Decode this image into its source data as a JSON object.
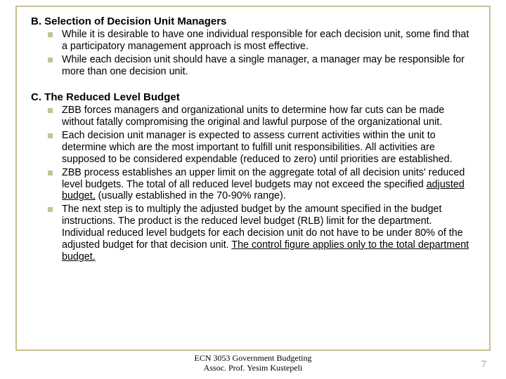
{
  "colors": {
    "frame_border": "#c8c090",
    "bullet_square": "#c8c090",
    "page_number": "#b89040",
    "text": "#000000",
    "background": "#ffffff"
  },
  "typography": {
    "body_font": "Arial",
    "footer_font": "Times New Roman",
    "heading_size_pt": 12,
    "body_size_pt": 11,
    "footer_size_pt": 9
  },
  "sectionB": {
    "heading": "B. Selection of Decision Unit Managers",
    "bullets": [
      "While it is desirable to have one individual responsible for each decision unit, some find that a participatory management approach is most effective.",
      "While each decision unit should have a single manager, a manager may be responsible for more than one decision unit."
    ]
  },
  "sectionC": {
    "heading": "C. The Reduced Level Budget",
    "bullets": [
      {
        "pre": "ZBB forces managers and organizational units to determine how far cuts can be made without fatally compromising the original and lawful purpose of the organizational unit."
      },
      {
        "pre": "Each decision unit manager is expected to assess current activities within the unit to determine which are the most important to fulfill unit responsibilities. All activities are supposed to be considered expendable (reduced to zero) until priorities are established."
      },
      {
        "pre": "ZBB process establishes an upper limit on the aggregate total of all decision units' reduced level budgets. The  total of all reduced level budgets may not exceed the specified ",
        "u1": "adjusted budget,",
        "mid": " (usually established in the 70-90% range)."
      },
      {
        "pre": "The next step is to multiply the adjusted budget by the amount specified in the budget instructions. The product is the reduced level budget (RLB) limit for the department. Individual reduced level budgets for each decision unit do not have to be under 80% of the adjusted budget for that decision unit. ",
        "u1": "The control figure applies only to the total department budget."
      }
    ]
  },
  "footer": {
    "line1": "ECN 3053 Government Budgeting",
    "line2": "Assoc. Prof. Yesim Kustepeli",
    "page": "7"
  }
}
